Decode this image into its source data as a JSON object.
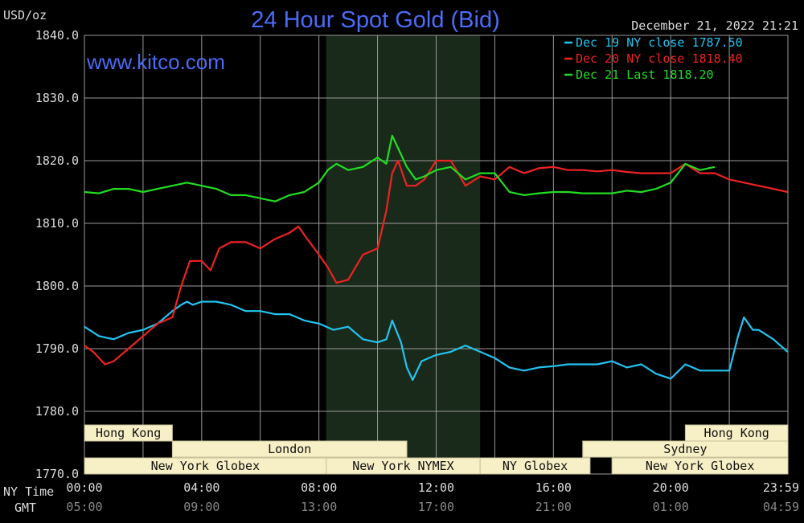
{
  "header": {
    "unit": "USD/oz",
    "title": "24 Hour Spot Gold (Bid)",
    "datetime": "December 21, 2022 21:21",
    "website": "www.kitco.com"
  },
  "axis_labels": {
    "ny_time": "NY Time",
    "gmt": "GMT"
  },
  "colors": {
    "background": "#000000",
    "grid": "#9a9a9a",
    "title": "#4a6cf7",
    "session_fill": "#f7efc6",
    "session_border": "#c9c29a",
    "shade": "#1a2a1a",
    "dec19": "#22c4f0",
    "dec20": "#ee2222",
    "dec21": "#22dd22"
  },
  "sessions": [
    {
      "label": "Hong Kong",
      "row": 0,
      "start": 0.0,
      "end": 3.0
    },
    {
      "label": "Hong Kong",
      "row": 0,
      "start": 20.5,
      "end": 24.0
    },
    {
      "label": "London",
      "row": 1,
      "start": 3.0,
      "end": 11.0
    },
    {
      "label": "Sydney",
      "row": 1,
      "start": 17.0,
      "end": 24.0
    },
    {
      "label": "New York Globex",
      "row": 2,
      "start": 0.0,
      "end": 8.25
    },
    {
      "label": "New York NYMEX",
      "row": 2,
      "start": 8.25,
      "end": 13.5
    },
    {
      "label": "NY Globex",
      "row": 2,
      "start": 13.5,
      "end": 17.25
    },
    {
      "label": "New York Globex",
      "row": 2,
      "start": 18.0,
      "end": 24.0
    }
  ],
  "chart_data": {
    "type": "line",
    "title": "24 Hour Spot Gold (Bid)",
    "ylabel": "USD/oz",
    "ylim": [
      1770,
      1840
    ],
    "xlim": [
      0,
      24
    ],
    "y_ticks": [
      "1840.0",
      "1830.0",
      "1820.0",
      "1810.0",
      "1800.0",
      "1790.0",
      "1780.0",
      "1770.0"
    ],
    "x_ticks": [
      {
        "ny": "00:00",
        "gmt": "05:00"
      },
      {
        "ny": "04:00",
        "gmt": "09:00"
      },
      {
        "ny": "08:00",
        "gmt": "13:00"
      },
      {
        "ny": "12:00",
        "gmt": "17:00"
      },
      {
        "ny": "16:00",
        "gmt": "21:00"
      },
      {
        "ny": "20:00",
        "gmt": "01:00"
      },
      {
        "ny": "23:59",
        "gmt": "04:59"
      }
    ],
    "grid": true,
    "legend_position": "top-right",
    "shaded_range": [
      8.25,
      13.5
    ],
    "series": [
      {
        "name": "Dec 19 NY close 1787.50",
        "color": "#22c4f0",
        "x": [
          0,
          0.5,
          1,
          1.5,
          2,
          2.5,
          3,
          3.3,
          3.5,
          3.7,
          4,
          4.5,
          5,
          5.5,
          6,
          6.5,
          7,
          7.5,
          8,
          8.5,
          9,
          9.5,
          10,
          10.3,
          10.5,
          10.8,
          11,
          11.2,
          11.5,
          12,
          12.5,
          13,
          13.5,
          14,
          14.5,
          15,
          15.5,
          16,
          16.5,
          17,
          17.5,
          18,
          18.5,
          19,
          19.5,
          20,
          20.5,
          21,
          21.5,
          22,
          22.3,
          22.5,
          22.8,
          23,
          23.5,
          23.99
        ],
        "y": [
          1793.5,
          1792,
          1791.5,
          1792.5,
          1793,
          1794,
          1796,
          1797,
          1797.5,
          1797,
          1797.5,
          1797.5,
          1797,
          1796,
          1796,
          1795.5,
          1795.5,
          1794.5,
          1794,
          1793,
          1793.5,
          1791.5,
          1791,
          1791.5,
          1794.5,
          1791,
          1787,
          1785,
          1788,
          1789,
          1789.5,
          1790.5,
          1789.5,
          1788.5,
          1787,
          1786.5,
          1787,
          1787.2,
          1787.5,
          1787.5,
          1787.5,
          1788,
          1787,
          1787.5,
          1786,
          1785.2,
          1787.5,
          1786.5,
          1786.5,
          1786.5,
          1792,
          1795,
          1793,
          1793,
          1791.5,
          1789.5
        ]
      },
      {
        "name": "Dec 20 NY close 1818.40",
        "color": "#ee2222",
        "x": [
          0,
          0.3,
          0.7,
          1,
          1.5,
          2,
          2.5,
          3,
          3.3,
          3.6,
          4,
          4.3,
          4.6,
          5,
          5.5,
          6,
          6.5,
          7,
          7.3,
          7.6,
          8,
          8.3,
          8.6,
          9,
          9.5,
          10,
          10.3,
          10.5,
          10.7,
          11,
          11.3,
          11.6,
          12,
          12.5,
          13,
          13.5,
          14,
          14.5,
          15,
          15.5,
          16,
          16.5,
          17,
          17.5,
          18,
          18.5,
          19,
          19.5,
          20,
          20.5,
          21,
          21.5,
          22,
          22.5,
          23,
          23.5,
          23.99
        ],
        "y": [
          1790.5,
          1789.5,
          1787.5,
          1788,
          1790,
          1792,
          1794,
          1795,
          1800,
          1804,
          1804,
          1802.5,
          1806,
          1807,
          1807,
          1806,
          1807.5,
          1808.5,
          1809.5,
          1807.5,
          1805,
          1803,
          1800.5,
          1801,
          1805,
          1806,
          1812,
          1818,
          1820,
          1816,
          1816,
          1817,
          1820,
          1820,
          1816,
          1817.5,
          1817,
          1819,
          1818,
          1818.8,
          1819,
          1818.5,
          1818.5,
          1818.3,
          1818.5,
          1818.2,
          1818,
          1818,
          1818,
          1819.5,
          1818,
          1818,
          1817,
          1816.5,
          1816,
          1815.5,
          1815
        ]
      },
      {
        "name": "Dec 21 Last 1818.20",
        "color": "#22dd22",
        "x": [
          0,
          0.5,
          1,
          1.5,
          2,
          2.5,
          3,
          3.5,
          4,
          4.5,
          5,
          5.5,
          6,
          6.5,
          7,
          7.5,
          8,
          8.3,
          8.6,
          9,
          9.5,
          10,
          10.3,
          10.5,
          10.7,
          11,
          11.3,
          11.6,
          12,
          12.5,
          13,
          13.5,
          14,
          14.5,
          15,
          15.5,
          16,
          16.5,
          17,
          17.5,
          18,
          18.5,
          19,
          19.5,
          20,
          20.5,
          21,
          21.5
        ],
        "y": [
          1815,
          1814.8,
          1815.5,
          1815.5,
          1815,
          1815.5,
          1816,
          1816.5,
          1816,
          1815.5,
          1814.5,
          1814.5,
          1814,
          1813.5,
          1814.5,
          1815,
          1816.5,
          1818.5,
          1819.5,
          1818.5,
          1819,
          1820.5,
          1819.5,
          1824,
          1822,
          1819,
          1817,
          1817.5,
          1818.5,
          1819,
          1817,
          1818,
          1818,
          1815,
          1814.5,
          1814.8,
          1815,
          1815,
          1814.8,
          1814.8,
          1814.8,
          1815.2,
          1815,
          1815.5,
          1816.5,
          1819.5,
          1818.5,
          1819
        ]
      }
    ]
  }
}
